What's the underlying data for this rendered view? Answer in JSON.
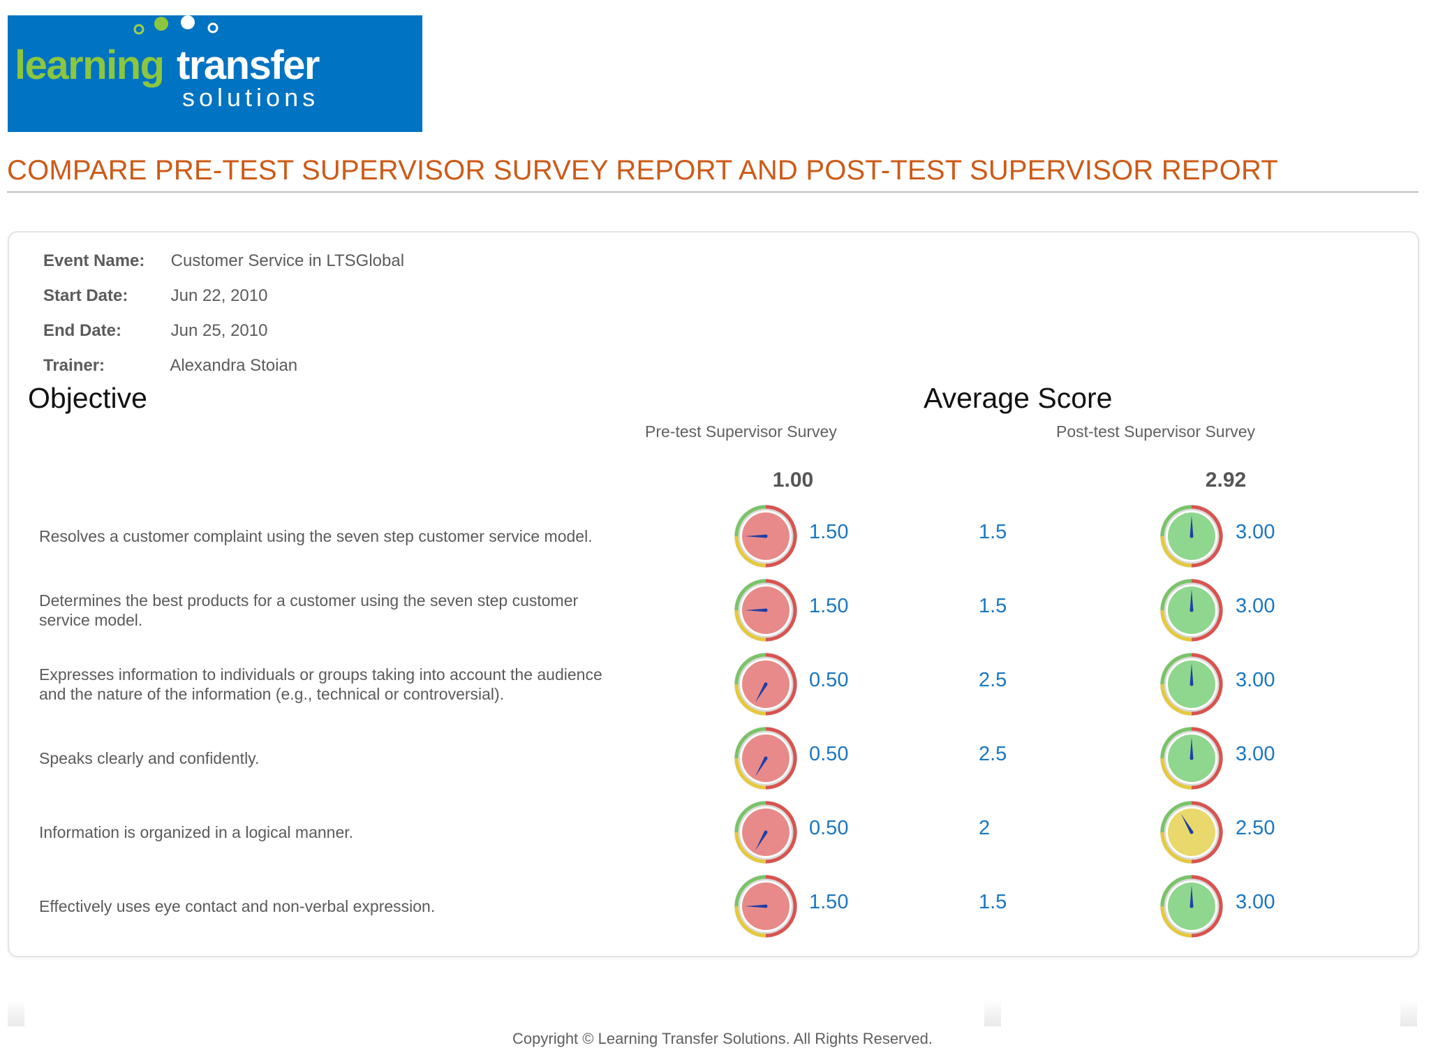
{
  "logo": {
    "word1": "learning",
    "word2": "transfer",
    "word3": "solutions",
    "bg_color": "#0073c2",
    "green": "#8cc63f"
  },
  "report": {
    "title": "COMPARE PRE-TEST SUPERVISOR SURVEY REPORT AND POST-TEST SUPERVISOR REPORT"
  },
  "event": {
    "name_label": "Event Name:",
    "name": "Customer Service in LTSGlobal",
    "start_label": "Start Date:",
    "start": "Jun 22, 2010",
    "end_label": "End Date:",
    "end": "Jun 25, 2010",
    "trainer_label": "Trainer:",
    "trainer": "Alexandra Stoian"
  },
  "table": {
    "objective_heading": "Objective",
    "average_heading": "Average Score",
    "pre_heading": "Pre-test Supervisor Survey",
    "post_heading": "Post-test Supervisor Survey",
    "pre_overall": "1.00",
    "post_overall": "2.92",
    "gauge_max": 3,
    "gauge_colors": {
      "low": "#e88a8a",
      "mid": "#e9d86b",
      "high": "#8fd68f"
    },
    "rows": [
      {
        "objective": "Resolves a customer complaint using the seven step customer service model.",
        "pre": "1.50",
        "pre_value": 1.5,
        "pre_level": "low",
        "change": "1.5",
        "post": "3.00",
        "post_value": 3.0,
        "post_level": "high"
      },
      {
        "objective": "Determines the best products for a customer using the seven step customer service model.",
        "pre": "1.50",
        "pre_value": 1.5,
        "pre_level": "low",
        "change": "1.5",
        "post": "3.00",
        "post_value": 3.0,
        "post_level": "high"
      },
      {
        "objective": "Expresses information to individuals or groups taking into account the audience and the nature of the information (e.g., technical or controversial).",
        "pre": "0.50",
        "pre_value": 0.5,
        "pre_level": "low",
        "change": "2.5",
        "post": "3.00",
        "post_value": 3.0,
        "post_level": "high"
      },
      {
        "objective": "Speaks clearly and confidently.",
        "pre": "0.50",
        "pre_value": 0.5,
        "pre_level": "low",
        "change": "2.5",
        "post": "3.00",
        "post_value": 3.0,
        "post_level": "high"
      },
      {
        "objective": "Information is organized in a logical manner.",
        "pre": "0.50",
        "pre_value": 0.5,
        "pre_level": "low",
        "change": "2",
        "post": "2.50",
        "post_value": 2.5,
        "post_level": "mid"
      },
      {
        "objective": "Effectively uses eye contact and non-verbal expression.",
        "pre": "1.50",
        "pre_value": 1.5,
        "pre_level": "low",
        "change": "1.5",
        "post": "3.00",
        "post_value": 3.0,
        "post_level": "high"
      }
    ]
  },
  "footer": {
    "copyright": "Copyright © Learning Transfer Solutions. All Rights Reserved."
  }
}
